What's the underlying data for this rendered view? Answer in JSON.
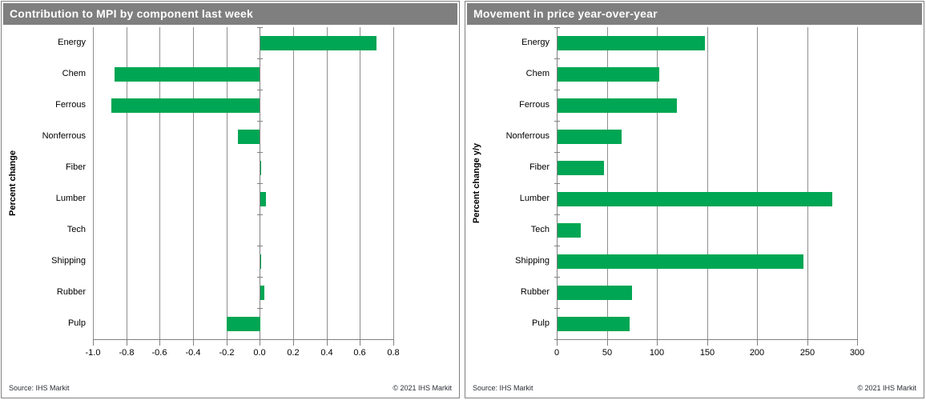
{
  "colors": {
    "header_bg": "#7f7f7f",
    "header_text": "#ffffff",
    "bar_green": "#00A653",
    "gridline": "#8f8f8f",
    "axis": "#808080",
    "label_text": "#000000",
    "footer_text": "#2b2e34",
    "panel_border": "#808080"
  },
  "panels": [
    {
      "title": "Contribution to MPI by component last week",
      "source": "Source: IHS Markit",
      "copyright": "© 2021  IHS Markit"
    },
    {
      "title": "Movement in price year-over-year",
      "source": "Source: IHS Markit",
      "copyright": "© 2021  IHS Markit"
    }
  ],
  "chart_data": [
    {
      "type": "bar",
      "orientation": "horizontal",
      "title": "Contribution to MPI by component last week",
      "categories": [
        "Energy",
        "Chem",
        "Ferrous",
        "Nonferrous",
        "Fiber",
        "Lumber",
        "Tech",
        "Shipping",
        "Rubber",
        "Pulp"
      ],
      "values": [
        0.7,
        -0.87,
        -0.89,
        -0.13,
        0.01,
        0.04,
        0.0,
        0.01,
        0.03,
        -0.2
      ],
      "xlabel": "",
      "ylabel": "Percent change",
      "xlim": [
        -1.0,
        0.8
      ],
      "xticks": [
        -1.0,
        -0.8,
        -0.6,
        -0.4,
        -0.2,
        0.0,
        0.2,
        0.4,
        0.6,
        0.8
      ],
      "xtick_labels": [
        "-1.0",
        "-0.8",
        "-0.6",
        "-0.4",
        "-0.2",
        "0.0",
        "0.2",
        "0.4",
        "0.6",
        "0.8"
      ],
      "grid": true,
      "legend": false
    },
    {
      "type": "bar",
      "orientation": "horizontal",
      "title": "Movement in price year-over-year",
      "categories": [
        "Energy",
        "Chem",
        "Ferrous",
        "Nonferrous",
        "Fiber",
        "Lumber",
        "Tech",
        "Shipping",
        "Rubber",
        "Pulp"
      ],
      "values": [
        148,
        102,
        120,
        65,
        47,
        275,
        24,
        246,
        75,
        73
      ],
      "xlabel": "",
      "ylabel": "Percent change y/y",
      "xlim": [
        0,
        300
      ],
      "xticks": [
        0,
        50,
        100,
        150,
        200,
        250,
        300
      ],
      "xtick_labels": [
        "0",
        "50",
        "100",
        "150",
        "200",
        "250",
        "300"
      ],
      "grid": true,
      "legend": false
    }
  ]
}
